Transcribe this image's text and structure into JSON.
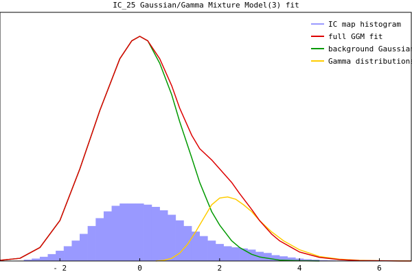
{
  "chart_data": {
    "type": "line",
    "title": "IC_25 Gaussian/Gamma Mixture Model(3) fit",
    "xlabel": "",
    "ylabel": "",
    "xlim": [
      -3.5,
      6.8
    ],
    "ylim": [
      0,
      1.0
    ],
    "x_ticks": [
      -2,
      0,
      2,
      4,
      6
    ],
    "x_tick_labels": [
      "- 2",
      "0",
      "2",
      "4",
      "6"
    ],
    "grid": false,
    "legend_position": "top-right",
    "histogram": {
      "name": "IC map histogram",
      "color": "#9999ff",
      "bins_x": [
        -2.8,
        -2.6,
        -2.4,
        -2.2,
        -2.0,
        -1.8,
        -1.6,
        -1.4,
        -1.2,
        -1.0,
        -0.8,
        -0.6,
        -0.4,
        -0.2,
        0.0,
        0.2,
        0.4,
        0.6,
        0.8,
        1.0,
        1.2,
        1.4,
        1.6,
        1.8,
        2.0,
        2.2,
        2.4,
        2.6,
        2.8,
        3.0,
        3.2,
        3.4,
        3.6,
        3.8,
        4.0,
        4.2,
        4.4,
        4.6,
        4.8,
        5.0
      ],
      "bins_y": [
        0.005,
        0.01,
        0.018,
        0.03,
        0.045,
        0.065,
        0.09,
        0.12,
        0.155,
        0.19,
        0.22,
        0.245,
        0.255,
        0.255,
        0.255,
        0.25,
        0.24,
        0.225,
        0.205,
        0.18,
        0.155,
        0.13,
        0.11,
        0.09,
        0.075,
        0.065,
        0.06,
        0.055,
        0.05,
        0.04,
        0.035,
        0.025,
        0.02,
        0.015,
        0.01,
        0.007,
        0.005,
        0.003,
        0.002,
        0.001
      ]
    },
    "series": [
      {
        "name": "full GGM fit",
        "color": "#dd0000",
        "x": [
          -3.5,
          -3.0,
          -2.5,
          -2.0,
          -1.5,
          -1.0,
          -0.5,
          -0.2,
          0.0,
          0.2,
          0.5,
          0.8,
          1.0,
          1.3,
          1.5,
          1.8,
          2.0,
          2.3,
          2.5,
          2.8,
          3.0,
          3.3,
          3.5,
          3.8,
          4.0,
          4.5,
          5.0,
          5.5,
          6.0,
          6.5,
          6.8
        ],
        "y": [
          0.003,
          0.012,
          0.06,
          0.18,
          0.41,
          0.67,
          0.9,
          0.98,
          1.0,
          0.98,
          0.9,
          0.78,
          0.68,
          0.56,
          0.5,
          0.45,
          0.41,
          0.35,
          0.3,
          0.23,
          0.18,
          0.12,
          0.09,
          0.06,
          0.04,
          0.016,
          0.006,
          0.002,
          0.001,
          0.0,
          0.0
        ]
      },
      {
        "name": "background Gaussian",
        "color": "#009900",
        "x": [
          -3.5,
          -3.0,
          -2.5,
          -2.0,
          -1.5,
          -1.0,
          -0.5,
          -0.2,
          0.0,
          0.2,
          0.5,
          0.8,
          1.0,
          1.3,
          1.5,
          1.8,
          2.0,
          2.3,
          2.5,
          2.8,
          3.0,
          3.5,
          4.0,
          4.5
        ],
        "y": [
          0.003,
          0.012,
          0.06,
          0.18,
          0.41,
          0.67,
          0.9,
          0.98,
          1.0,
          0.98,
          0.88,
          0.74,
          0.62,
          0.46,
          0.35,
          0.22,
          0.16,
          0.09,
          0.06,
          0.03,
          0.018,
          0.004,
          0.001,
          0.0
        ]
      },
      {
        "name": "Gamma distributions",
        "color": "#ffcc00",
        "x": [
          0.4,
          0.6,
          0.8,
          1.0,
          1.2,
          1.4,
          1.6,
          1.8,
          2.0,
          2.2,
          2.4,
          2.6,
          2.8,
          3.0,
          3.3,
          3.6,
          4.0,
          4.5,
          5.0,
          5.5,
          6.0,
          6.8
        ],
        "y": [
          0.0,
          0.003,
          0.012,
          0.035,
          0.075,
          0.13,
          0.19,
          0.25,
          0.28,
          0.285,
          0.275,
          0.25,
          0.22,
          0.18,
          0.13,
          0.09,
          0.05,
          0.02,
          0.008,
          0.003,
          0.001,
          0.0
        ]
      }
    ]
  }
}
